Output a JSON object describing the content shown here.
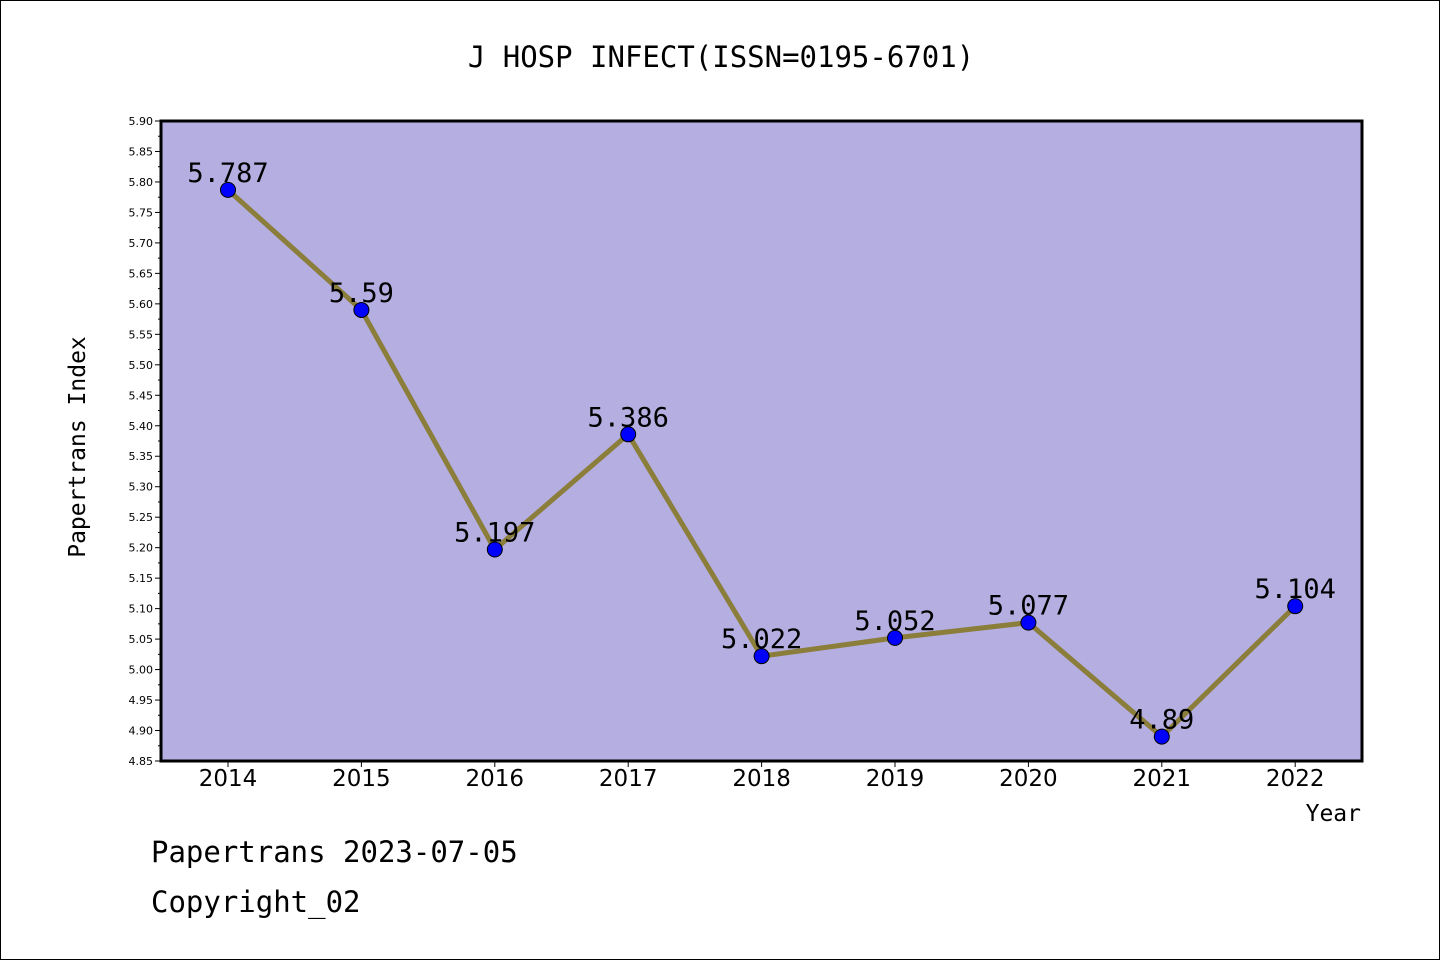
{
  "chart_data": {
    "type": "line",
    "title": "J HOSP INFECT(ISSN=0195-6701)",
    "xlabel": "Year",
    "ylabel": "Papertrans Index",
    "categories": [
      "2014",
      "2015",
      "2016",
      "2017",
      "2018",
      "2019",
      "2020",
      "2021",
      "2022"
    ],
    "values": [
      5.787,
      5.59,
      5.197,
      5.386,
      5.022,
      5.052,
      5.077,
      4.89,
      5.104
    ],
    "data_labels": [
      "5.787",
      "5.59",
      "5.197",
      "5.386",
      "5.022",
      "5.052",
      "5.077",
      "4.89",
      "5.104"
    ],
    "ylim": [
      4.85,
      5.9
    ],
    "yticks": [
      "4.85",
      "4.90",
      "4.95",
      "5.00",
      "5.05",
      "5.10",
      "5.15",
      "5.20",
      "5.25",
      "5.30",
      "5.35",
      "5.40",
      "5.45",
      "5.50",
      "5.55",
      "5.60",
      "5.65",
      "5.70",
      "5.75",
      "5.80",
      "5.85",
      "5.90"
    ],
    "grid": false,
    "legend": "none",
    "colors": {
      "plot_background": "#b4aee1",
      "line": "#8b7d3a",
      "marker": "#0000ff"
    }
  },
  "footer": {
    "line1": "Papertrans 2023-07-05",
    "line2": "Copyright_02"
  }
}
